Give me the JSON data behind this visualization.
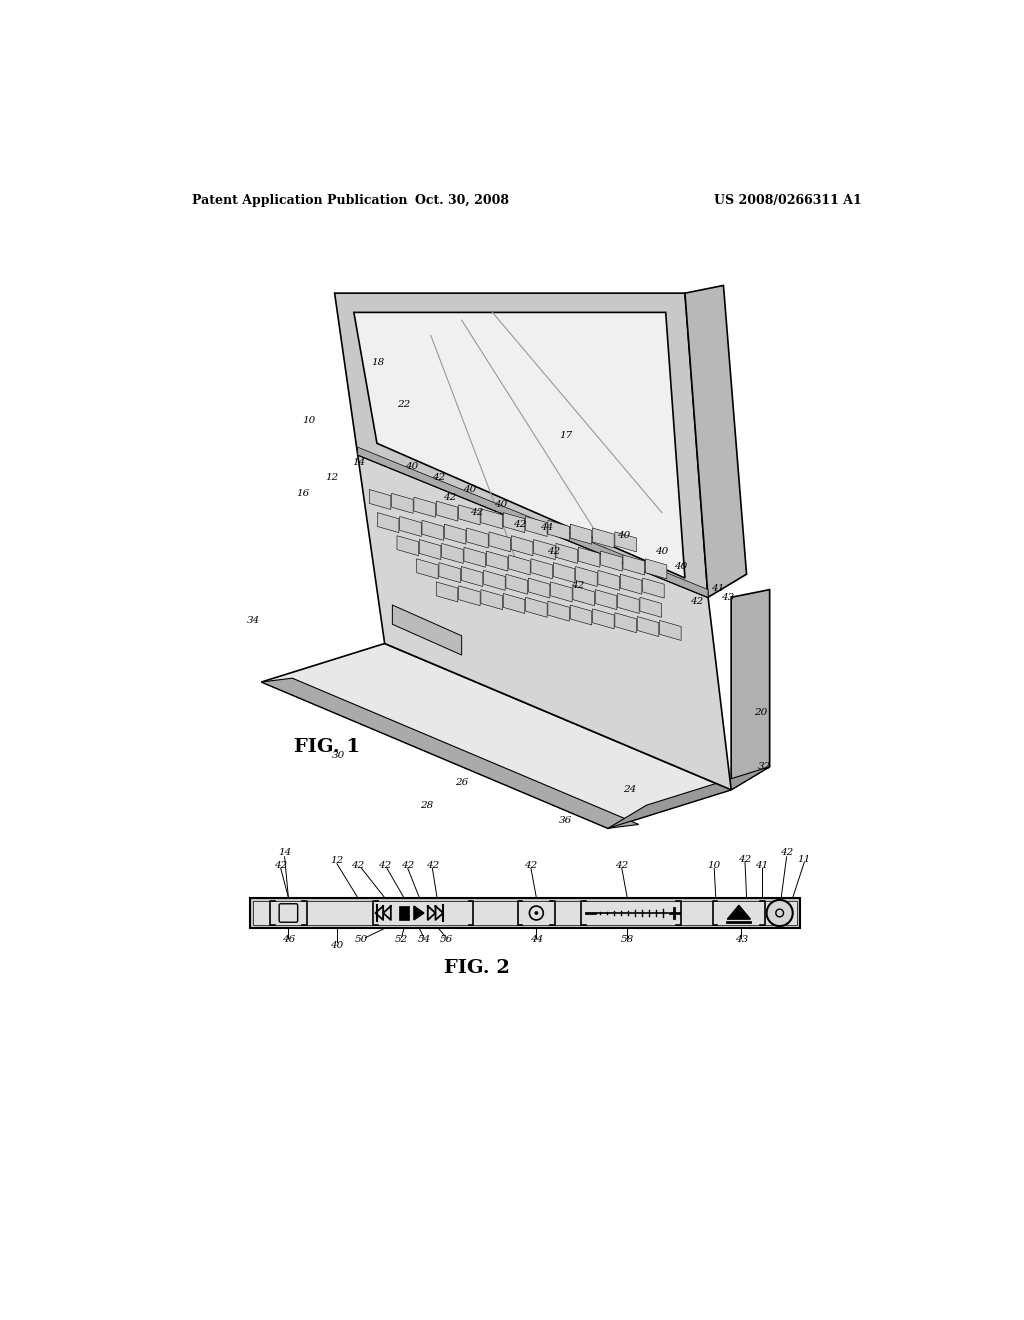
{
  "bg_color": "#ffffff",
  "header_left": "Patent Application Publication",
  "header_center": "Oct. 30, 2008",
  "header_right": "US 2008/0266311 A1",
  "fig1_label": "FIG. 1",
  "fig2_label": "FIG. 2"
}
